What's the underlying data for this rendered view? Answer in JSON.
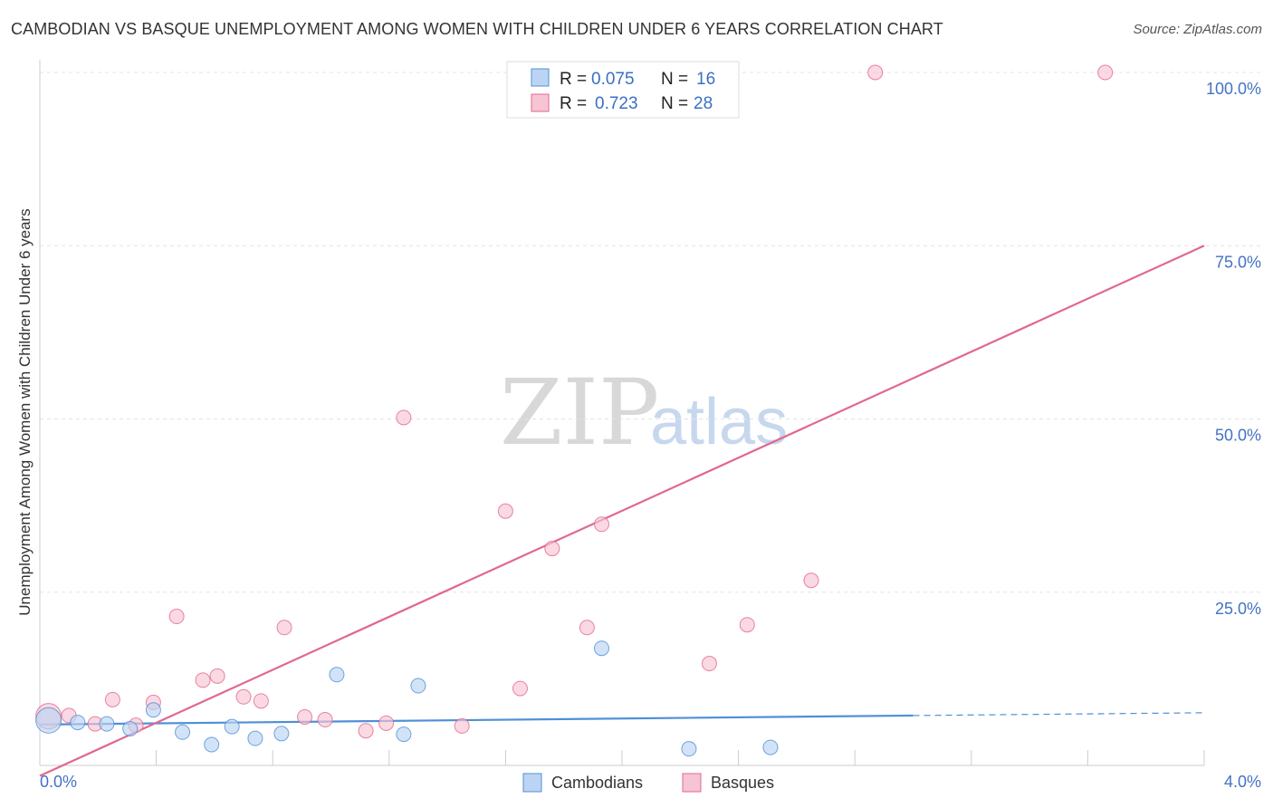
{
  "chart_data": {
    "type": "scatter",
    "title": "CAMBODIAN VS BASQUE UNEMPLOYMENT AMONG WOMEN WITH CHILDREN UNDER 6 YEARS CORRELATION CHART",
    "source": "Source: ZipAtlas.com",
    "xlabel": "",
    "ylabel": "Unemployment Among Women with Children Under 6 years",
    "xlim": [
      0,
      4
    ],
    "ylim": [
      0,
      100
    ],
    "x_tick_labels": [
      "0.0%",
      "4.0%"
    ],
    "y_tick_labels": [
      "25.0%",
      "50.0%",
      "75.0%",
      "100.0%"
    ],
    "y_tick_values": [
      25,
      50,
      75,
      100
    ],
    "watermark": {
      "left": "ZIP",
      "right": "atlas"
    },
    "stats": [
      {
        "r_label": "R =",
        "r": "0.075",
        "n_label": "N =",
        "n": "16"
      },
      {
        "r_label": "R =",
        "r": "0.723",
        "n_label": "N =",
        "n": "28"
      }
    ],
    "series": [
      {
        "name": "Cambodians",
        "color": "#4f8fd8",
        "fill": "#bcd4f3",
        "points": [
          [
            0.03,
            6.5
          ],
          [
            0.13,
            6.2
          ],
          [
            0.23,
            6.0
          ],
          [
            0.31,
            5.3
          ],
          [
            0.39,
            8.0
          ],
          [
            0.49,
            4.8
          ],
          [
            0.59,
            3.0
          ],
          [
            0.66,
            5.6
          ],
          [
            0.74,
            3.9
          ],
          [
            0.83,
            4.6
          ],
          [
            1.02,
            13.1
          ],
          [
            1.25,
            4.5
          ],
          [
            1.3,
            11.5
          ],
          [
            1.93,
            16.9
          ],
          [
            2.23,
            2.4
          ],
          [
            2.51,
            2.6
          ]
        ],
        "large_point_index": 0,
        "trend": {
          "x0": 0.0,
          "y0": 5.9,
          "x1": 3.0,
          "y1": 7.2,
          "dash_to_x": 4.0,
          "dash_to_y": 7.6
        }
      },
      {
        "name": "Basques",
        "color": "#e0688f",
        "fill": "#f7c4d4",
        "points": [
          [
            0.03,
            7.1
          ],
          [
            0.1,
            7.2
          ],
          [
            0.19,
            6.0
          ],
          [
            0.25,
            9.5
          ],
          [
            0.33,
            5.8
          ],
          [
            0.39,
            9.1
          ],
          [
            0.47,
            21.5
          ],
          [
            0.56,
            12.3
          ],
          [
            0.61,
            12.9
          ],
          [
            0.7,
            9.9
          ],
          [
            0.76,
            9.3
          ],
          [
            0.84,
            19.9
          ],
          [
            0.91,
            7.0
          ],
          [
            0.98,
            6.6
          ],
          [
            1.12,
            5.0
          ],
          [
            1.19,
            6.1
          ],
          [
            1.25,
            50.2
          ],
          [
            1.45,
            5.7
          ],
          [
            1.6,
            36.7
          ],
          [
            1.65,
            11.1
          ],
          [
            1.76,
            31.3
          ],
          [
            1.88,
            19.9
          ],
          [
            1.93,
            34.8
          ],
          [
            2.3,
            14.7
          ],
          [
            2.43,
            20.3
          ],
          [
            2.65,
            26.7
          ],
          [
            2.87,
            100.0
          ],
          [
            3.66,
            100.0
          ]
        ],
        "large_point_index": 0,
        "trend": {
          "x0": 0.0,
          "y0": -1.5,
          "x1": 4.0,
          "y1": 75.0
        }
      }
    ]
  }
}
